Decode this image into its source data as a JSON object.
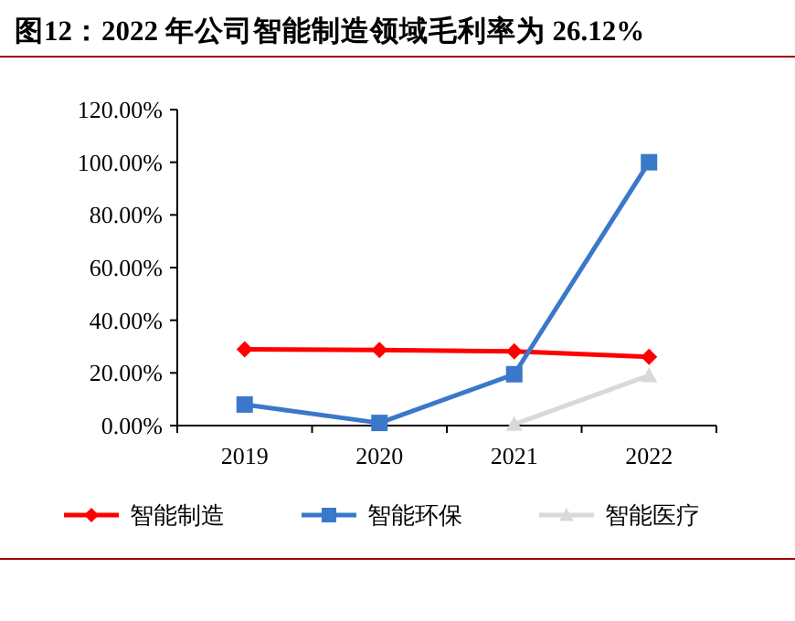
{
  "chart_data": {
    "type": "line",
    "title": "图12：2022 年公司智能制造领域毛利率为 26.12%",
    "categories": [
      "2019",
      "2020",
      "2021",
      "2022"
    ],
    "series": [
      {
        "name": "智能制造",
        "color": "#ff0000",
        "marker": "diamond",
        "values": [
          29,
          28.7,
          28.2,
          26.12
        ]
      },
      {
        "name": "智能环保",
        "color": "#3a78c9",
        "marker": "square",
        "values": [
          8,
          1,
          19.5,
          100
        ]
      },
      {
        "name": "智能医疗",
        "color": "#d9d9d9",
        "marker": "triangle",
        "values": [
          null,
          null,
          0.5,
          19
        ]
      }
    ],
    "ylim": [
      0,
      120
    ],
    "yticks": [
      {
        "value": 0,
        "label": "0.00%"
      },
      {
        "value": 20,
        "label": "20.00%"
      },
      {
        "value": 40,
        "label": "40.00%"
      },
      {
        "value": 60,
        "label": "60.00%"
      },
      {
        "value": 80,
        "label": "80.00%"
      },
      {
        "value": 100,
        "label": "100.00%"
      },
      {
        "value": 120,
        "label": "120.00%"
      }
    ],
    "grid": false,
    "legend": "bottom"
  }
}
